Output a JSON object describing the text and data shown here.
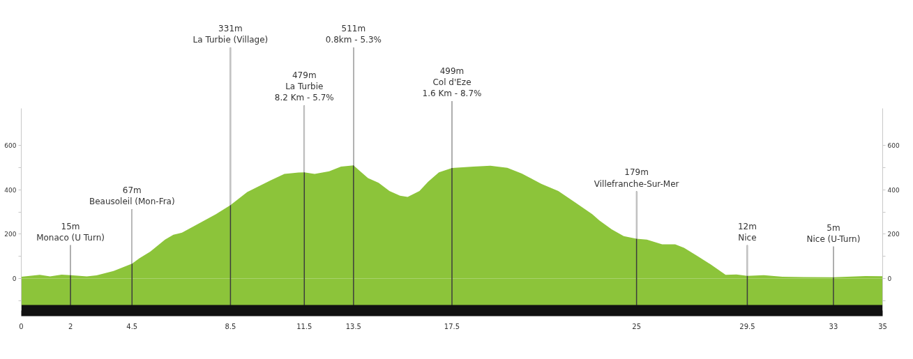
{
  "chart_data": {
    "type": "area",
    "color": "#8cc43a",
    "grid": "x",
    "x": [
      0,
      0.48,
      0.75,
      1.17,
      1.64,
      2,
      2.66,
      3.06,
      3.75,
      4.5,
      4.8,
      5.24,
      5.84,
      6.18,
      6.53,
      7.39,
      7.91,
      8.5,
      9.18,
      10.13,
      10.69,
      11.26,
      11.5,
      11.92,
      12.51,
      12.99,
      13.5,
      13.82,
      14.09,
      14.52,
      14.96,
      15.39,
      15.7,
      16.18,
      16.53,
      16.97,
      17.5,
      18.37,
      19.06,
      19.75,
      20.34,
      21.13,
      21.82,
      22.51,
      23.2,
      23.49,
      23.99,
      24.48,
      25,
      25.42,
      26.04,
      26.57,
      26.93,
      27.46,
      27.99,
      28.62,
      29.06,
      29.5,
      30.17,
      30.93,
      31.79,
      33,
      34.3,
      35
    ],
    "values": [
      8,
      13,
      16,
      9,
      17,
      15,
      9,
      14,
      34,
      67,
      91,
      121,
      175,
      197,
      207,
      259,
      290,
      331,
      390,
      443,
      472,
      478,
      479,
      472,
      484,
      505,
      511,
      479,
      453,
      432,
      395,
      374,
      368,
      395,
      437,
      479,
      499,
      505,
      509,
      500,
      474,
      427,
      395,
      343,
      290,
      262,
      222,
      191,
      179,
      175,
      154,
      154,
      138,
      102,
      65,
      16,
      18,
      12,
      15,
      8,
      6,
      5,
      11,
      10
    ],
    "bands": [
      {
        "axis": "y",
        "from": -145,
        "to": 0,
        "color": "#8cc43a"
      }
    ],
    "xlim": [
      0,
      35
    ],
    "xticks": [
      0,
      2,
      4.5,
      8.5,
      11.5,
      13.5,
      17.5,
      25,
      29.5,
      33,
      35
    ],
    "ylim": [
      -145,
      768
    ],
    "yticks": [
      {
        "value": -100,
        "label": null
      },
      0,
      {
        "value": 100,
        "label": null
      },
      200,
      {
        "value": 300,
        "label": null
      },
      400,
      {
        "value": 500,
        "label": null
      },
      600
    ],
    "y2lim": [
      -145,
      768
    ],
    "y2ticks": [
      {
        "value": -100,
        "label": null
      },
      0,
      {
        "value": 100,
        "label": null
      },
      200,
      {
        "value": 300,
        "label": null
      },
      400,
      {
        "value": 500,
        "label": null
      },
      600
    ],
    "annotations": [
      {
        "text": "15m\nMonaco (U Turn)",
        "x": 2,
        "y": 15
      },
      {
        "text": "67m\nBeausoleil (Mon-Fra)",
        "x": 4.5,
        "y": 67
      },
      {
        "text": "331m\nLa Turbie (Village)",
        "x": 8.5,
        "y": 331
      },
      {
        "text": "479m\nLa Turbie\n8.2 Km - 5.7%",
        "x": 11.5,
        "y": 479
      },
      {
        "text": "511m\n0.8km - 5.3%",
        "x": 13.5,
        "y": 511
      },
      {
        "text": "499m\nCol d'Eze\n1.6 Km - 8.7%",
        "x": 17.5,
        "y": 499
      },
      {
        "text": "179m\nVillefranche-Sur-Mer",
        "x": 25,
        "y": 179
      },
      {
        "text": "12m\nNice",
        "x": 29.5,
        "y": 12
      },
      {
        "text": "5m\nNice (U-Turn)",
        "x": 33,
        "y": 5
      }
    ]
  }
}
